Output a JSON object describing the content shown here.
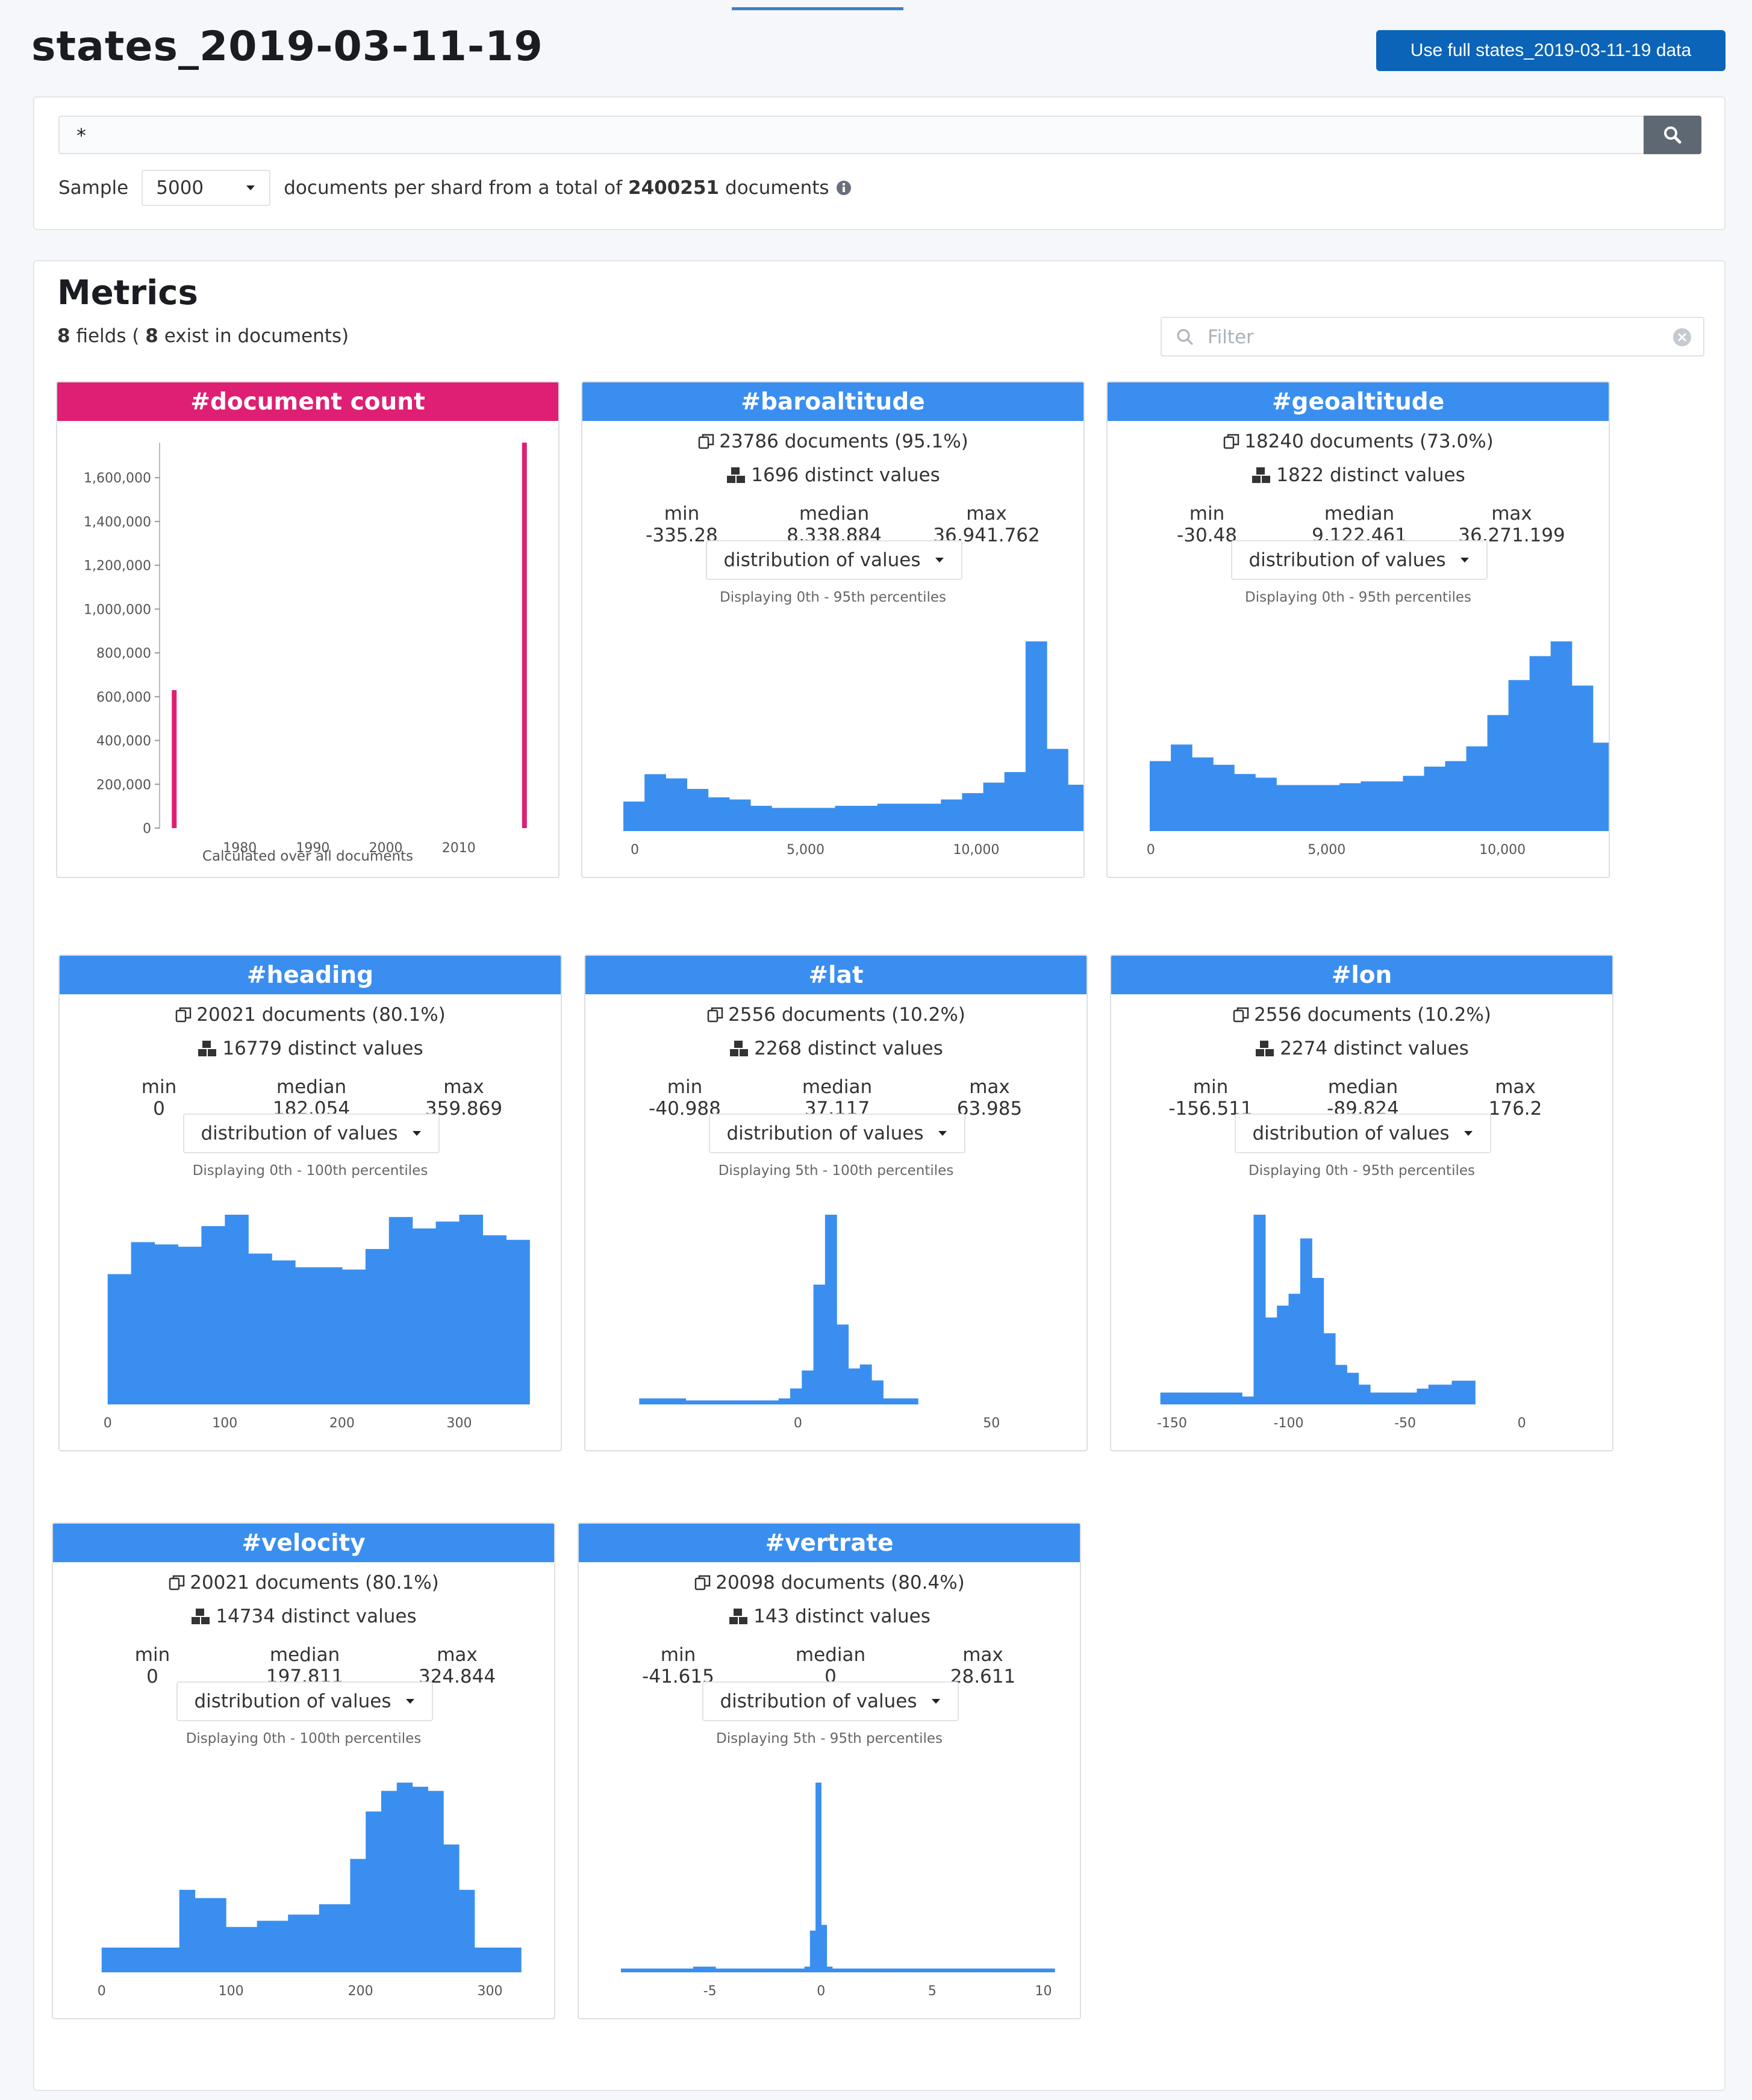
{
  "header": {
    "title": "states_2019-03-11-19",
    "full_data_button": "Use full states_2019-03-11-19 data"
  },
  "search": {
    "query": "*",
    "sample_label": "Sample",
    "sample_value": "5000",
    "sample_suffix": "documents per shard from a total of",
    "total_docs": "2400251",
    "docs_word": "documents"
  },
  "metrics": {
    "title": "Metrics",
    "fields_count": "8",
    "fields_word": "fields (",
    "exist_count": "8",
    "exist_text": "exist in documents)",
    "filter_placeholder": "Filter"
  },
  "colors": {
    "bar_blue": "#3a8ef0",
    "doc_pink": "#df1f74",
    "button_blue": "#0b64b8"
  },
  "doc_count_card": {
    "title": "#document count",
    "footer": "Calculated over all documents"
  },
  "cards": [
    {
      "title": "#baroaltitude",
      "documents": "23786 documents (95.1%)",
      "distinct": "1696 distinct values",
      "min_label": "min",
      "median_label": "median",
      "max_label": "max",
      "min": "-335.28",
      "median": "8,338.884",
      "max": "36,941.762",
      "dropdown": "distribution of values",
      "percentiles": "Displaying 0th - 95th percentiles"
    },
    {
      "title": "#geoaltitude",
      "documents": "18240 documents (73.0%)",
      "distinct": "1822 distinct values",
      "min_label": "min",
      "median_label": "median",
      "max_label": "max",
      "min": "-30.48",
      "median": "9,122.461",
      "max": "36,271.199",
      "dropdown": "distribution of values",
      "percentiles": "Displaying 0th - 95th percentiles"
    },
    {
      "title": "#heading",
      "documents": "20021 documents (80.1%)",
      "distinct": "16779 distinct values",
      "min_label": "min",
      "median_label": "median",
      "max_label": "max",
      "min": "0",
      "median": "182.054",
      "max": "359.869",
      "dropdown": "distribution of values",
      "percentiles": "Displaying 0th - 100th percentiles"
    },
    {
      "title": "#lat",
      "documents": "2556 documents (10.2%)",
      "distinct": "2268 distinct values",
      "min_label": "min",
      "median_label": "median",
      "max_label": "max",
      "min": "-40.988",
      "median": "37.117",
      "max": "63.985",
      "dropdown": "distribution of values",
      "percentiles": "Displaying 5th - 100th percentiles"
    },
    {
      "title": "#lon",
      "documents": "2556 documents (10.2%)",
      "distinct": "2274 distinct values",
      "min_label": "min",
      "median_label": "median",
      "max_label": "max",
      "min": "-156.511",
      "median": "-89.824",
      "max": "176.2",
      "dropdown": "distribution of values",
      "percentiles": "Displaying 0th - 95th percentiles"
    },
    {
      "title": "#velocity",
      "documents": "20021 documents (80.1%)",
      "distinct": "14734 distinct values",
      "min_label": "min",
      "median_label": "median",
      "max_label": "max",
      "min": "0",
      "median": "197.811",
      "max": "324.844",
      "dropdown": "distribution of values",
      "percentiles": "Displaying 0th - 100th percentiles"
    },
    {
      "title": "#vertrate",
      "documents": "20098 documents (80.4%)",
      "distinct": "143 distinct values",
      "min_label": "min",
      "median_label": "median",
      "max_label": "max",
      "min": "-41.615",
      "median": "0",
      "max": "28.611",
      "dropdown": "distribution of values",
      "percentiles": "Displaying 5th - 95th percentiles"
    }
  ],
  "chart_data": [
    {
      "type": "bar",
      "title": "#document count",
      "xlabel": "",
      "ylabel": "",
      "x": [
        1971,
        2019
      ],
      "values": [
        630000,
        1760000
      ],
      "xlim": [
        1969,
        2021
      ],
      "ylim": [
        0,
        1760000
      ],
      "xticks": [
        1980,
        1990,
        2000,
        2010
      ],
      "yticks": [
        0,
        200000,
        400000,
        600000,
        800000,
        1000000,
        1200000,
        1400000,
        1600000
      ],
      "ytick_labels": [
        "0",
        "200,000",
        "400,000",
        "600,000",
        "800,000",
        "1,000,000",
        "1,200,000",
        "1,400,000",
        "1,600,000"
      ],
      "color": "#df1f74"
    },
    {
      "type": "bar",
      "title": "#baroaltitude",
      "xlim": [
        -300,
        12400
      ],
      "bin_start": -335,
      "bin_width": 620,
      "values": [
        14,
        27,
        25,
        20,
        16,
        15,
        12,
        11,
        11,
        11,
        12,
        12,
        13,
        13,
        13,
        15,
        18,
        23,
        28,
        90,
        39,
        22
      ],
      "xticks": [
        0,
        5000,
        10000
      ],
      "xtick_labels": [
        "0",
        "5,000",
        "10,000"
      ]
    },
    {
      "type": "bar",
      "title": "#geoaltitude",
      "xlim": [
        -30,
        12300
      ],
      "bin_start": -30,
      "bin_width": 600,
      "values": [
        38,
        47,
        40,
        36,
        31,
        29,
        25,
        25,
        25,
        26,
        27,
        27,
        30,
        35,
        38,
        46,
        63,
        82,
        95,
        103,
        79,
        48
      ],
      "xticks": [
        0,
        5000,
        10000
      ],
      "xtick_labels": [
        "0",
        "5,000",
        "10,000"
      ]
    },
    {
      "type": "bar",
      "title": "#heading",
      "xlim": [
        -5,
        365
      ],
      "bin_start": 0,
      "bin_width": 20,
      "values": [
        57,
        71,
        70,
        69,
        78,
        83,
        66,
        63,
        60,
        60,
        59,
        68,
        82,
        77,
        80,
        83,
        74,
        72
      ],
      "xticks": [
        0,
        100,
        200,
        300
      ],
      "xtick_labels": [
        "0",
        "100",
        "200",
        "300"
      ]
    },
    {
      "type": "bar",
      "title": "#lat",
      "xlim": [
        -44,
        68
      ],
      "bin_start": -41,
      "bin_width": 3,
      "values": [
        3,
        3,
        3,
        3,
        2,
        2,
        2,
        2,
        2,
        2,
        2,
        2,
        3,
        8,
        17,
        60,
        95,
        40,
        18,
        20,
        12,
        3,
        3,
        3
      ],
      "xticks": [
        0,
        50
      ],
      "xtick_labels": [
        "0",
        "50"
      ]
    },
    {
      "type": "bar",
      "title": "#lon",
      "xlim": [
        -158,
        28
      ],
      "bin_start": -155,
      "bin_width": 5,
      "values": [
        3,
        3,
        3,
        3,
        3,
        3,
        3,
        2,
        48,
        22,
        25,
        28,
        42,
        32,
        18,
        10,
        8,
        5,
        3,
        3,
        3,
        3,
        4,
        5,
        5,
        6,
        6
      ],
      "xticks": [
        -150,
        -100,
        -50,
        0
      ],
      "xtick_labels": [
        "-150",
        "-100",
        "-50",
        "0"
      ]
    },
    {
      "type": "bar",
      "title": "#velocity",
      "xlim": [
        -5,
        330
      ],
      "bin_start": 0,
      "bin_width": 12,
      "values": [
        12,
        12,
        12,
        12,
        12,
        40,
        36,
        36,
        22,
        22,
        25,
        25,
        28,
        28,
        33,
        33,
        55,
        78,
        88,
        92,
        90,
        88,
        62,
        40,
        12,
        12,
        12
      ],
      "xticks": [
        0,
        100,
        200,
        300
      ],
      "xtick_labels": [
        "0",
        "100",
        "200",
        "300"
      ]
    },
    {
      "type": "bar",
      "title": "#vertrate",
      "xlim": [
        -9,
        10.5
      ],
      "bin_start": -9,
      "bin_width": 0.25,
      "values": [
        2,
        2,
        2,
        2,
        2,
        2,
        2,
        2,
        2,
        2,
        2,
        2,
        2,
        3,
        3,
        3,
        3,
        2,
        2,
        2,
        2,
        2,
        2,
        2,
        2,
        2,
        2,
        2,
        2,
        2,
        2,
        2,
        2,
        3,
        22,
        100,
        25,
        3,
        2,
        2,
        2,
        2,
        2,
        2,
        2,
        2,
        2,
        2,
        2,
        2,
        2,
        2,
        2,
        2,
        2,
        2,
        2,
        2,
        2,
        2,
        2,
        2,
        2,
        2,
        2,
        2,
        2,
        2,
        2,
        2,
        2,
        2,
        2,
        2,
        2,
        2,
        2,
        2
      ],
      "xticks": [
        -5,
        0,
        5,
        10
      ],
      "xtick_labels": [
        "-5",
        "0",
        "5",
        "10"
      ]
    }
  ]
}
